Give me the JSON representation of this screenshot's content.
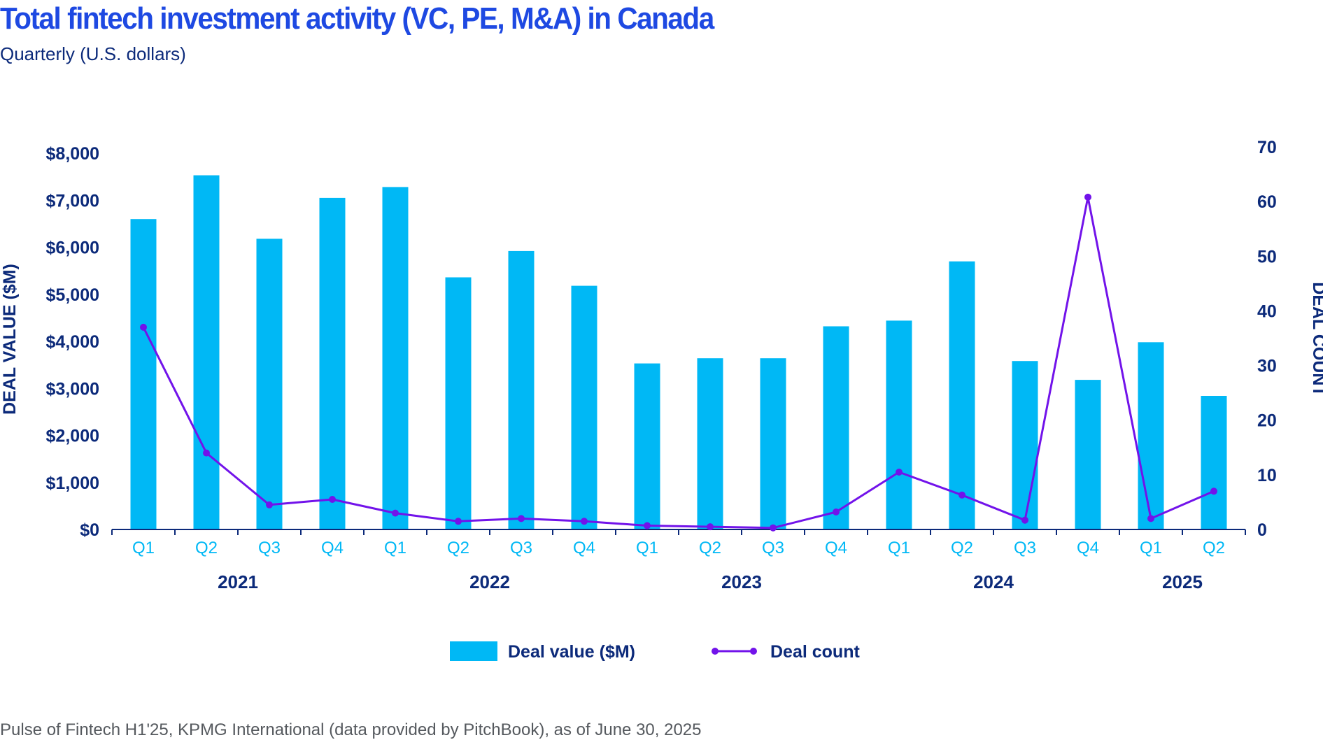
{
  "colors": {
    "title": "#1e49e2",
    "text": "#0c2a7a",
    "bar": "#00b8f5",
    "line": "#7213ea",
    "axis": "#0c2a7a",
    "source": "#55595e"
  },
  "chart_data": {
    "type": "bar",
    "title": "Total fintech investment activity (VC, PE, M&A) in Canada",
    "subtitle": "Quarterly (U.S. dollars)",
    "source": "Pulse of Fintech H1'25, KPMG International (data provided by PitchBook), as of June 30, 2025",
    "ylabel": "DEAL VALUE ($M)",
    "ylabel_right": "DEAL COUNT",
    "ylim": [
      0,
      8000
    ],
    "ylim_right": [
      0,
      70
    ],
    "yticks_left": [
      "$0",
      "$1,000",
      "$2,000",
      "$3,000",
      "$4,000",
      "$5,000",
      "$6,000",
      "$7,000",
      "$8,000"
    ],
    "yticks_right": [
      "0",
      "10",
      "20",
      "30",
      "40",
      "50",
      "60",
      "70"
    ],
    "categories": [
      "Q1",
      "Q2",
      "Q3",
      "Q4",
      "Q1",
      "Q2",
      "Q3",
      "Q4",
      "Q1",
      "Q2",
      "Q3",
      "Q4",
      "Q1",
      "Q2",
      "Q3",
      "Q4",
      "Q1",
      "Q2"
    ],
    "years": [
      {
        "label": "2021",
        "quarters": 4
      },
      {
        "label": "2022",
        "quarters": 4
      },
      {
        "label": "2023",
        "quarters": 4
      },
      {
        "label": "2024",
        "quarters": 4
      },
      {
        "label": "2025",
        "quarters": 2
      }
    ],
    "grid": false,
    "legend_position": "bottom",
    "series": [
      {
        "name": "Deal value ($M)",
        "type": "bar",
        "axis": "left",
        "values": [
          6600,
          7530,
          6180,
          7050,
          7280,
          5360,
          5920,
          5180,
          3530,
          3640,
          3640,
          4320,
          4440,
          5700,
          3580,
          3180,
          3980,
          2840
        ]
      },
      {
        "name": "Deal count",
        "type": "line",
        "axis": "right",
        "values": [
          37,
          14,
          4.5,
          5.5,
          3,
          1.5,
          2,
          1.5,
          0.7,
          0.5,
          0.3,
          3.2,
          10.5,
          6.3,
          1.7,
          60.8,
          2,
          7
        ]
      }
    ]
  }
}
